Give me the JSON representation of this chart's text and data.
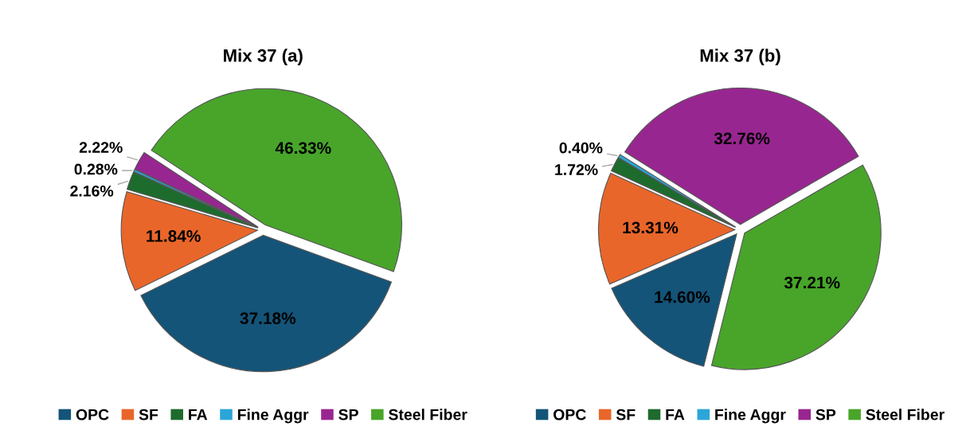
{
  "chart_data": [
    {
      "type": "pie",
      "title": "Mix 37 (a)",
      "categories": [
        "OPC",
        "SF",
        "FA",
        "Fine Aggr",
        "SP",
        "Steel Fiber"
      ],
      "values": [
        37.18,
        11.84,
        2.16,
        0.28,
        2.22,
        46.33
      ],
      "value_labels": [
        "37.18%",
        "11.84%",
        "2.16%",
        "0.28%",
        "2.22%",
        "46.33%"
      ],
      "colors": [
        "#145478",
        "#e9662a",
        "#1e6b2e",
        "#2aa6d8",
        "#982690",
        "#48a52a"
      ],
      "legend": "bottom"
    },
    {
      "type": "pie",
      "title": "Mix 37 (b)",
      "categories": [
        "OPC",
        "SF",
        "FA",
        "Fine Aggr",
        "SP",
        "Steel Fiber"
      ],
      "values": [
        14.6,
        13.31,
        1.72,
        0.4,
        32.76,
        37.21
      ],
      "value_labels": [
        "14.60%",
        "13.31%",
        "1.72%",
        "0.40%",
        "32.76%",
        "37.21%"
      ],
      "colors": [
        "#145478",
        "#e9662a",
        "#1e6b2e",
        "#2aa6d8",
        "#982690",
        "#48a52a"
      ],
      "legend": "bottom"
    }
  ]
}
